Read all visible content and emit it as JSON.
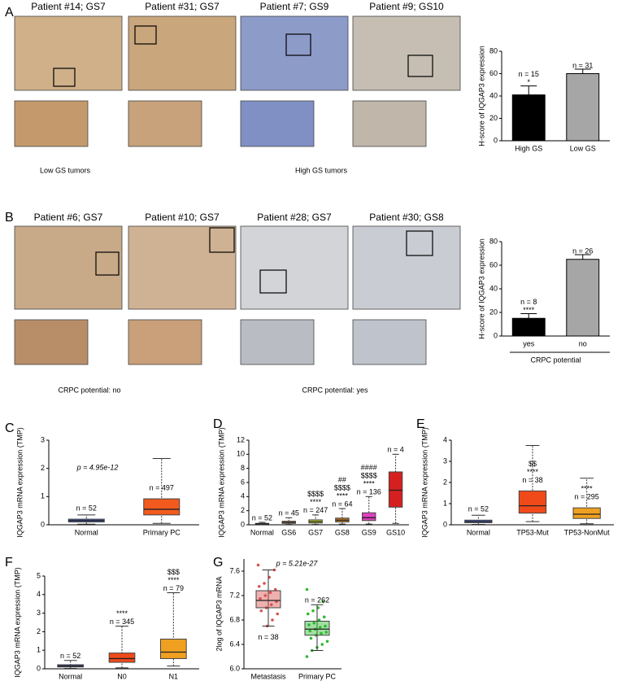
{
  "figure": {
    "panel_letters": [
      "A",
      "B",
      "C",
      "D",
      "E",
      "F",
      "G"
    ],
    "a_titles": [
      "Patient #14; GS7",
      "Patient #31; GS7",
      "Patient #7; GS9",
      "Patient #9; GS10"
    ],
    "a_captions": [
      "Low GS tumors",
      "High GS tumors"
    ],
    "b_titles": [
      "Patient #6; GS7",
      "Patient #10; GS7",
      "Patient #28; GS7",
      "Patient #30; GS8"
    ],
    "b_captions": [
      "CRPC potential: no",
      "CRPC potential: yes"
    ]
  },
  "chart_data": [
    {
      "type": "bar",
      "ylabel": "H-score of IQGAP3 expression",
      "categories": [
        "High GS",
        "Low GS"
      ],
      "values": [
        41,
        60
      ],
      "errors": [
        8,
        4
      ],
      "colors": [
        "#000000",
        "#a6a6a6"
      ],
      "ylim": [
        0,
        80
      ],
      "yticks": [
        0,
        20,
        40,
        60,
        80
      ],
      "labels": [
        [
          "n = 15",
          "*"
        ],
        [
          "n = 31"
        ]
      ]
    },
    {
      "type": "bar",
      "ylabel": "H-score of IQGAP3 expression",
      "xlabel": "CRPC potential",
      "categories": [
        "yes",
        "no"
      ],
      "values": [
        15,
        65
      ],
      "errors": [
        4,
        4
      ],
      "colors": [
        "#000000",
        "#a6a6a6"
      ],
      "ylim": [
        0,
        80
      ],
      "yticks": [
        0,
        20,
        40,
        60,
        80
      ],
      "labels": [
        [
          "n = 8",
          "****"
        ],
        [
          "n = 26"
        ]
      ]
    },
    {
      "type": "box",
      "ylabel": "IQGAP3 mRNA expression (TMP)",
      "categories": [
        "Normal",
        "Primary PC"
      ],
      "boxes": [
        {
          "min": 0.02,
          "q1": 0.1,
          "median": 0.15,
          "q3": 0.2,
          "max": 0.35
        },
        {
          "min": 0.05,
          "q1": 0.35,
          "median": 0.55,
          "q3": 0.92,
          "max": 2.35
        }
      ],
      "colors": [
        "#4a5fc1",
        "#f25a1e"
      ],
      "ylim": [
        0,
        3
      ],
      "yticks": [
        0,
        1,
        2,
        3
      ],
      "labels": [
        [
          "n = 52"
        ],
        [
          "n = 497"
        ]
      ],
      "annotation": "p = 4.95e-12"
    },
    {
      "type": "box",
      "ylabel": "IQGAP3 mRNA expression (TMP)",
      "categories": [
        "Normal",
        "GS6",
        "GS7",
        "GS8",
        "GS9",
        "GS10"
      ],
      "boxes": [
        {
          "min": 0.05,
          "q1": 0.1,
          "median": 0.15,
          "q3": 0.2,
          "max": 0.35
        },
        {
          "min": 0.05,
          "q1": 0.2,
          "median": 0.35,
          "q3": 0.5,
          "max": 1.0
        },
        {
          "min": 0.05,
          "q1": 0.25,
          "median": 0.45,
          "q3": 0.7,
          "max": 1.4
        },
        {
          "min": 0.1,
          "q1": 0.4,
          "median": 0.65,
          "q3": 0.95,
          "max": 2.3
        },
        {
          "min": 0.1,
          "q1": 0.6,
          "median": 1.0,
          "q3": 1.7,
          "max": 4.0
        },
        {
          "min": 0.2,
          "q1": 2.5,
          "median": 4.9,
          "q3": 7.5,
          "max": 10.0
        }
      ],
      "colors": [
        "#4a5fc1",
        "#d08b3a",
        "#c6d629",
        "#c0782b",
        "#e040c0",
        "#d62020"
      ],
      "ylim": [
        0,
        12
      ],
      "yticks": [
        0,
        2,
        4,
        6,
        8,
        10,
        12
      ],
      "labels": [
        [
          "n = 52"
        ],
        [
          "n = 45"
        ],
        [
          "$$$$",
          "****",
          "n = 247"
        ],
        [
          "##",
          "$$$$",
          "****",
          "n = 64"
        ],
        [
          "####",
          "$$$$",
          "****",
          "n = 136"
        ],
        [
          "n = 4"
        ]
      ]
    },
    {
      "type": "box",
      "ylabel": "IQGAP3 mRNA expression (TMP)",
      "categories": [
        "Normal",
        "TP53-Mut",
        "TP53-NonMut"
      ],
      "boxes": [
        {
          "min": 0.02,
          "q1": 0.1,
          "median": 0.15,
          "q3": 0.22,
          "max": 0.45
        },
        {
          "min": 0.15,
          "q1": 0.55,
          "median": 0.9,
          "q3": 1.6,
          "max": 3.75
        },
        {
          "min": 0.05,
          "q1": 0.3,
          "median": 0.5,
          "q3": 0.8,
          "max": 2.2
        }
      ],
      "colors": [
        "#4a5fc1",
        "#f04a1a",
        "#f0a020"
      ],
      "ylim": [
        0,
        4
      ],
      "yticks": [
        0,
        1,
        2,
        3,
        4
      ],
      "labels": [
        [
          "n = 52"
        ],
        [
          "$$",
          "****",
          "n = 38"
        ],
        [
          "****",
          "n = 295"
        ]
      ]
    },
    {
      "type": "box",
      "ylabel": "IQGAP3 mRNA expression (TMP)",
      "categories": [
        "Normal",
        "N0",
        "N1"
      ],
      "boxes": [
        {
          "min": 0.02,
          "q1": 0.1,
          "median": 0.15,
          "q3": 0.22,
          "max": 0.45
        },
        {
          "min": 0.05,
          "q1": 0.35,
          "median": 0.55,
          "q3": 0.85,
          "max": 2.3
        },
        {
          "min": 0.15,
          "q1": 0.55,
          "median": 0.9,
          "q3": 1.6,
          "max": 4.1
        }
      ],
      "colors": [
        "#4a5fc1",
        "#f04a1a",
        "#f0a020"
      ],
      "ylim": [
        0,
        5
      ],
      "yticks": [
        0,
        1,
        2,
        3,
        4,
        5
      ],
      "labels": [
        [
          "n = 52"
        ],
        [
          "****",
          "n = 345"
        ],
        [
          "$$$",
          "****",
          "n = 79"
        ]
      ]
    },
    {
      "type": "box",
      "ylabel": "2log of IQGAP3 mRNA",
      "categories": [
        "Metastasis",
        "Primary PC"
      ],
      "boxes": [
        {
          "min": 6.7,
          "q1": 7.0,
          "median": 7.12,
          "q3": 7.28,
          "max": 7.62
        },
        {
          "min": 6.3,
          "q1": 6.55,
          "median": 6.65,
          "q3": 6.78,
          "max": 7.05
        }
      ],
      "colors": [
        "#d9534f",
        "#2eb82e"
      ],
      "points": [
        [
          7.7,
          7.62,
          7.5,
          7.4,
          7.35,
          7.3,
          7.25,
          7.2,
          7.15,
          7.1,
          7.05,
          7.0,
          6.95,
          6.9,
          6.8,
          6.7
        ],
        [
          7.3,
          7.1,
          7.0,
          6.95,
          6.9,
          6.85,
          6.8,
          6.75,
          6.72,
          6.7,
          6.68,
          6.65,
          6.62,
          6.6,
          6.58,
          6.55,
          6.5,
          6.45,
          6.4,
          6.35,
          6.3,
          6.2
        ]
      ],
      "ylim": [
        6.0,
        7.8
      ],
      "yticks": [
        {
          "value": 6.0,
          "label": "6.0"
        },
        {
          "value": 6.4,
          "label": "6.4"
        },
        {
          "value": 6.8,
          "label": "6.8"
        },
        {
          "value": 7.2,
          "label": "7.2"
        },
        {
          "value": 7.6,
          "label": "7.6"
        }
      ],
      "labels": [
        [],
        [
          "n = 262"
        ]
      ],
      "lower_labels": [
        [
          "n = 38"
        ],
        []
      ],
      "annotation": "p = 5.21e-27"
    }
  ]
}
